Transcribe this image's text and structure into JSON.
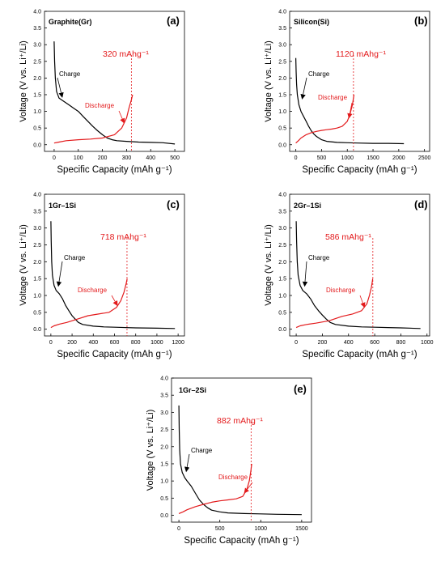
{
  "figure": {
    "x_axis_label": "Specific Capacity (mAh g⁻¹)",
    "y_axis_label": "Voltage (V vs. Li⁺/Li)",
    "colors": {
      "charge": "#000000",
      "discharge": "#e31a1c",
      "annotation": "#e31a1c",
      "axis": "#000000"
    }
  },
  "chart_data": [
    {
      "type": "line",
      "panel_letter": "(a)",
      "title": "Graphite(Gr)",
      "xlabel": "Specific Capacity (mAh g⁻¹)",
      "ylabel": "Voltage (V vs. Li⁺/Li)",
      "xlim": [
        -40,
        540
      ],
      "ylim": [
        -0.2,
        4.0
      ],
      "xticks": [
        0,
        100,
        200,
        300,
        400,
        500
      ],
      "yticks": [
        0.0,
        0.5,
        1.0,
        1.5,
        2.0,
        2.5,
        3.0,
        3.5,
        4.0
      ],
      "capacity_label": "320 mAhg⁻¹",
      "capacity_value": 320,
      "series": [
        {
          "name": "Charge",
          "x": [
            0,
            2,
            5,
            10,
            20,
            40,
            60,
            80,
            100,
            120,
            140,
            160,
            180,
            200,
            220,
            240,
            260,
            300,
            350,
            400,
            450,
            500
          ],
          "y": [
            3.1,
            2.5,
            2.0,
            1.6,
            1.4,
            1.3,
            1.2,
            1.1,
            1.0,
            0.85,
            0.7,
            0.55,
            0.42,
            0.3,
            0.2,
            0.15,
            0.12,
            0.1,
            0.08,
            0.07,
            0.06,
            0.02
          ]
        },
        {
          "name": "Discharge",
          "x": [
            0,
            20,
            50,
            100,
            150,
            200,
            250,
            280,
            300,
            310,
            320,
            325
          ],
          "y": [
            0.05,
            0.08,
            0.12,
            0.15,
            0.17,
            0.2,
            0.3,
            0.5,
            0.8,
            1.1,
            1.35,
            1.5
          ]
        }
      ]
    },
    {
      "type": "line",
      "panel_letter": "(b)",
      "title": "Silicon(Si)",
      "xlabel": "Specific Capacity (mAh g⁻¹)",
      "ylabel": "Voltage (V vs. Li⁺/Li)",
      "xlim": [
        -120,
        2600
      ],
      "ylim": [
        -0.2,
        4.0
      ],
      "xticks": [
        0,
        500,
        1000,
        1500,
        2000,
        2500
      ],
      "yticks": [
        0.0,
        0.5,
        1.0,
        1.5,
        2.0,
        2.5,
        3.0,
        3.5,
        4.0
      ],
      "capacity_label": "1120 mAhg⁻¹",
      "capacity_value": 1120,
      "series": [
        {
          "name": "Charge",
          "x": [
            0,
            5,
            15,
            30,
            60,
            100,
            150,
            200,
            250,
            300,
            350,
            400,
            500,
            600,
            800,
            1000,
            1200,
            1500,
            1800,
            2100
          ],
          "y": [
            2.6,
            2.2,
            1.8,
            1.5,
            1.2,
            1.0,
            0.85,
            0.7,
            0.55,
            0.42,
            0.32,
            0.25,
            0.15,
            0.1,
            0.07,
            0.06,
            0.05,
            0.04,
            0.04,
            0.03
          ]
        },
        {
          "name": "Discharge",
          "x": [
            0,
            50,
            100,
            200,
            300,
            400,
            500,
            600,
            700,
            800,
            900,
            1000,
            1050,
            1100,
            1130
          ],
          "y": [
            0.05,
            0.12,
            0.2,
            0.3,
            0.36,
            0.4,
            0.43,
            0.45,
            0.47,
            0.5,
            0.55,
            0.7,
            0.9,
            1.2,
            1.5
          ]
        }
      ]
    },
    {
      "type": "line",
      "panel_letter": "(c)",
      "title": "1Gr–1Si",
      "xlabel": "Specific Capacity (mAh g⁻¹)",
      "ylabel": "Voltage (V vs. Li⁺/Li)",
      "xlim": [
        -60,
        1260
      ],
      "ylim": [
        -0.2,
        4.0
      ],
      "xticks": [
        0,
        200,
        400,
        600,
        800,
        1000,
        1200
      ],
      "yticks": [
        0.0,
        0.5,
        1.0,
        1.5,
        2.0,
        2.5,
        3.0,
        3.5,
        4.0
      ],
      "capacity_label": "718 mAhg⁻¹",
      "capacity_value": 718,
      "series": [
        {
          "name": "Charge",
          "x": [
            0,
            3,
            8,
            15,
            30,
            50,
            80,
            110,
            140,
            170,
            200,
            230,
            260,
            300,
            400,
            500,
            600,
            800,
            1000,
            1170
          ],
          "y": [
            3.2,
            2.6,
            2.0,
            1.6,
            1.3,
            1.15,
            1.05,
            0.9,
            0.7,
            0.55,
            0.4,
            0.3,
            0.2,
            0.14,
            0.09,
            0.07,
            0.06,
            0.04,
            0.03,
            0.02
          ]
        },
        {
          "name": "Discharge",
          "x": [
            0,
            30,
            80,
            150,
            250,
            350,
            450,
            550,
            620,
            660,
            690,
            710,
            720
          ],
          "y": [
            0.05,
            0.1,
            0.15,
            0.2,
            0.3,
            0.4,
            0.45,
            0.5,
            0.65,
            0.85,
            1.1,
            1.35,
            1.5
          ]
        }
      ]
    },
    {
      "type": "line",
      "panel_letter": "(d)",
      "title": "2Gr–1Si",
      "xlabel": "Specific Capacity (mAh g⁻¹)",
      "ylabel": "Voltage (V vs. Li⁺/Li)",
      "xlim": [
        -50,
        1020
      ],
      "ylim": [
        -0.2,
        4.0
      ],
      "xticks": [
        0,
        200,
        400,
        600,
        800,
        1000
      ],
      "yticks": [
        0.0,
        0.5,
        1.0,
        1.5,
        2.0,
        2.5,
        3.0,
        3.5,
        4.0
      ],
      "capacity_label": "586 mAhg⁻¹",
      "capacity_value": 586,
      "series": [
        {
          "name": "Charge",
          "x": [
            0,
            3,
            8,
            15,
            30,
            50,
            80,
            110,
            140,
            170,
            200,
            230,
            260,
            300,
            400,
            500,
            600,
            700,
            800,
            950
          ],
          "y": [
            3.2,
            2.6,
            2.0,
            1.6,
            1.3,
            1.15,
            1.05,
            0.9,
            0.7,
            0.55,
            0.42,
            0.3,
            0.2,
            0.14,
            0.09,
            0.07,
            0.06,
            0.05,
            0.04,
            0.02
          ]
        },
        {
          "name": "Discharge",
          "x": [
            0,
            30,
            80,
            150,
            250,
            350,
            430,
            500,
            540,
            560,
            575,
            585
          ],
          "y": [
            0.05,
            0.1,
            0.14,
            0.18,
            0.25,
            0.38,
            0.45,
            0.55,
            0.75,
            1.0,
            1.25,
            1.5
          ]
        }
      ]
    },
    {
      "type": "line",
      "panel_letter": "(e)",
      "title": "1Gr–2Si",
      "xlabel": "Specific Capacity (mAh g⁻¹)",
      "ylabel": "Voltage (V vs. Li⁺/Li)",
      "xlim": [
        -90,
        1620
      ],
      "ylim": [
        -0.2,
        4.0
      ],
      "xticks": [
        0,
        500,
        1000,
        1500
      ],
      "yticks": [
        0.0,
        0.5,
        1.0,
        1.5,
        2.0,
        2.5,
        3.0,
        3.5,
        4.0
      ],
      "capacity_label": "882 mAhg⁻¹",
      "capacity_value": 882,
      "series": [
        {
          "name": "Charge",
          "x": [
            0,
            4,
            10,
            20,
            40,
            70,
            100,
            150,
            200,
            250,
            300,
            350,
            400,
            500,
            600,
            800,
            1000,
            1200,
            1500
          ],
          "y": [
            3.2,
            2.5,
            1.9,
            1.5,
            1.25,
            1.1,
            1.0,
            0.85,
            0.65,
            0.45,
            0.32,
            0.22,
            0.15,
            0.1,
            0.07,
            0.05,
            0.04,
            0.03,
            0.02
          ]
        },
        {
          "name": "Discharge",
          "x": [
            0,
            50,
            100,
            200,
            300,
            400,
            500,
            600,
            700,
            780,
            830,
            860,
            880,
            890
          ],
          "y": [
            0.05,
            0.1,
            0.16,
            0.25,
            0.32,
            0.38,
            0.42,
            0.45,
            0.48,
            0.55,
            0.75,
            1.0,
            1.3,
            1.5
          ]
        }
      ]
    }
  ]
}
